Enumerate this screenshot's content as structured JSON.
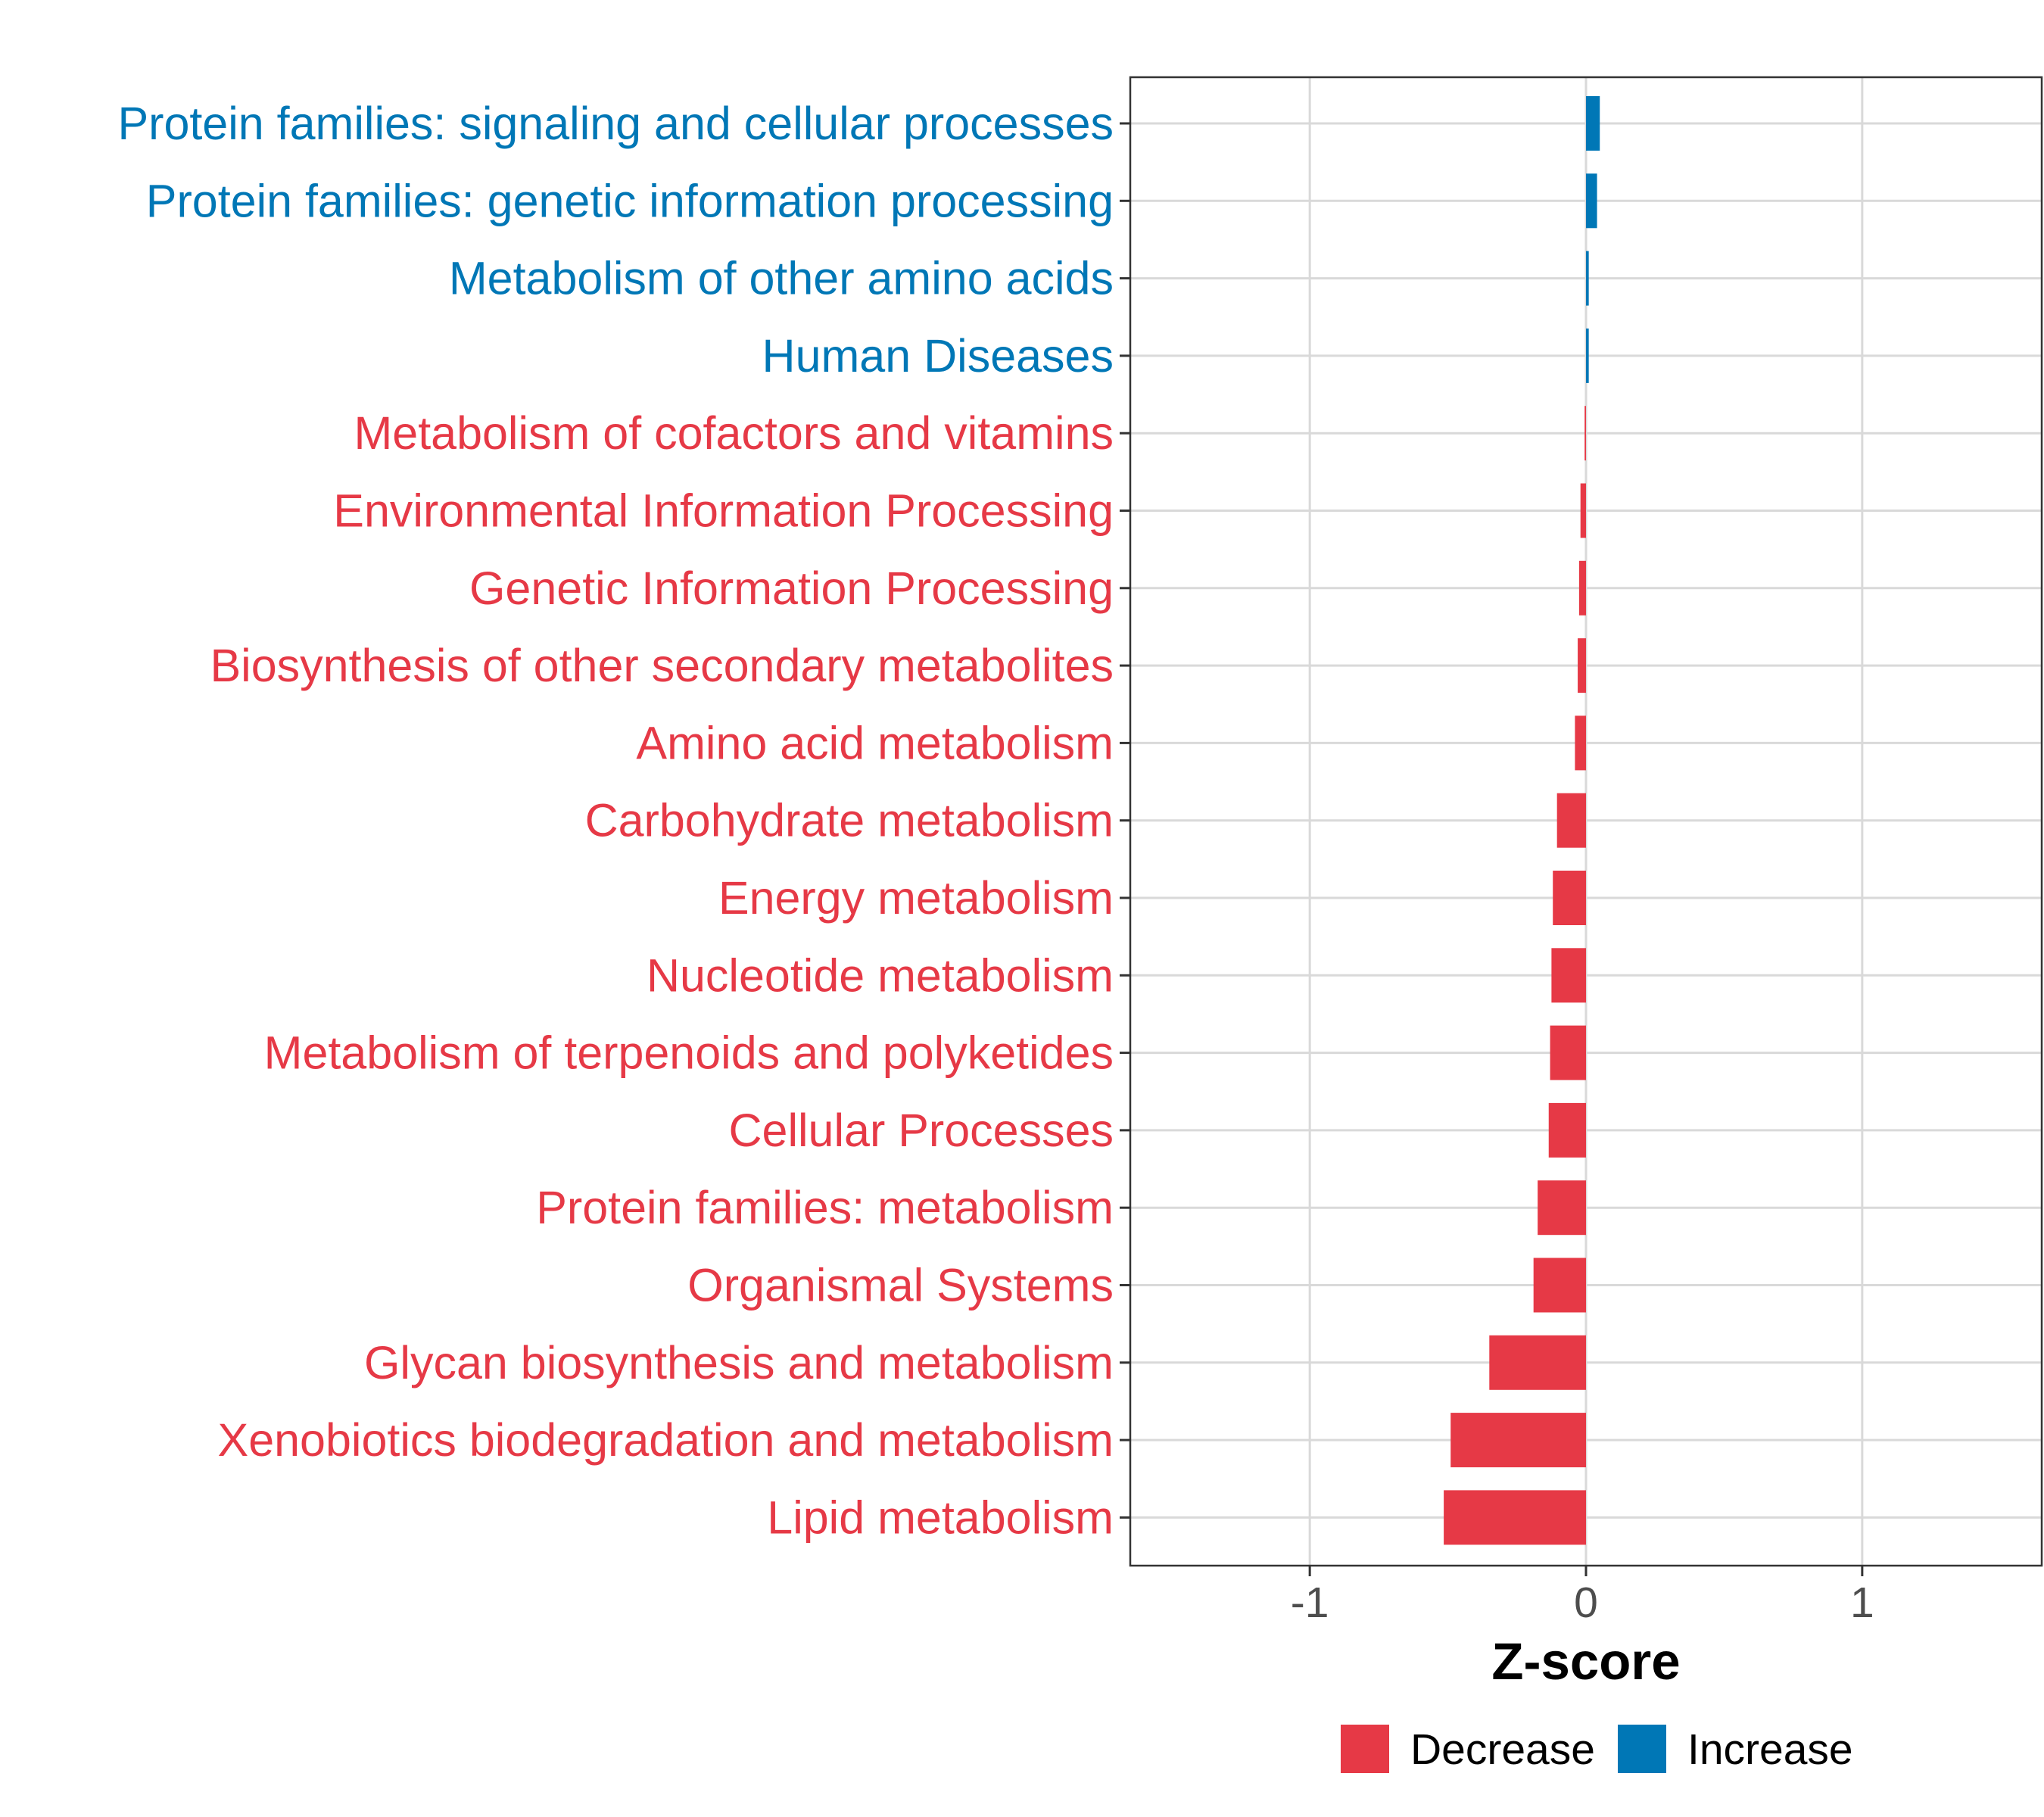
{
  "chart_data": {
    "type": "bar",
    "orientation": "horizontal",
    "title": "",
    "xlabel": "Z-score",
    "ylabel": "",
    "xlim": [
      -1.65,
      1.65
    ],
    "xticks": [
      -1,
      0,
      1
    ],
    "xtick_labels": [
      "-1",
      "0",
      "1"
    ],
    "grid": true,
    "legend_position": "bottom",
    "legend": [
      {
        "key": "decrease",
        "label": "Decrease",
        "color": "#E63946"
      },
      {
        "key": "increase",
        "label": "Increase",
        "color": "#0077B6"
      }
    ],
    "categories": [
      "Protein families: signaling and cellular processes",
      "Protein families: genetic information processing",
      "Metabolism of other amino acids",
      "Human Diseases",
      "Metabolism of cofactors and vitamins",
      "Environmental Information Processing",
      "Genetic Information Processing",
      "Biosynthesis of other secondary metabolites",
      "Amino acid metabolism",
      "Carbohydrate metabolism",
      "Energy metabolism",
      "Nucleotide metabolism",
      "Metabolism of terpenoids and polyketides",
      "Cellular Processes",
      "Protein families: metabolism",
      "Organismal Systems",
      "Glycan biosynthesis and metabolism",
      "Xenobiotics biodegradation and metabolism",
      "Lipid metabolism"
    ],
    "values": [
      0.05,
      0.04,
      0.01,
      0.01,
      -0.005,
      -0.02,
      -0.025,
      -0.03,
      -0.04,
      -0.105,
      -0.12,
      -0.125,
      -0.13,
      -0.135,
      -0.175,
      -0.19,
      -0.35,
      -0.49,
      -0.515
    ],
    "groups": [
      "increase",
      "increase",
      "increase",
      "increase",
      "decrease",
      "decrease",
      "decrease",
      "decrease",
      "decrease",
      "decrease",
      "decrease",
      "decrease",
      "decrease",
      "decrease",
      "decrease",
      "decrease",
      "decrease",
      "decrease",
      "decrease"
    ]
  }
}
